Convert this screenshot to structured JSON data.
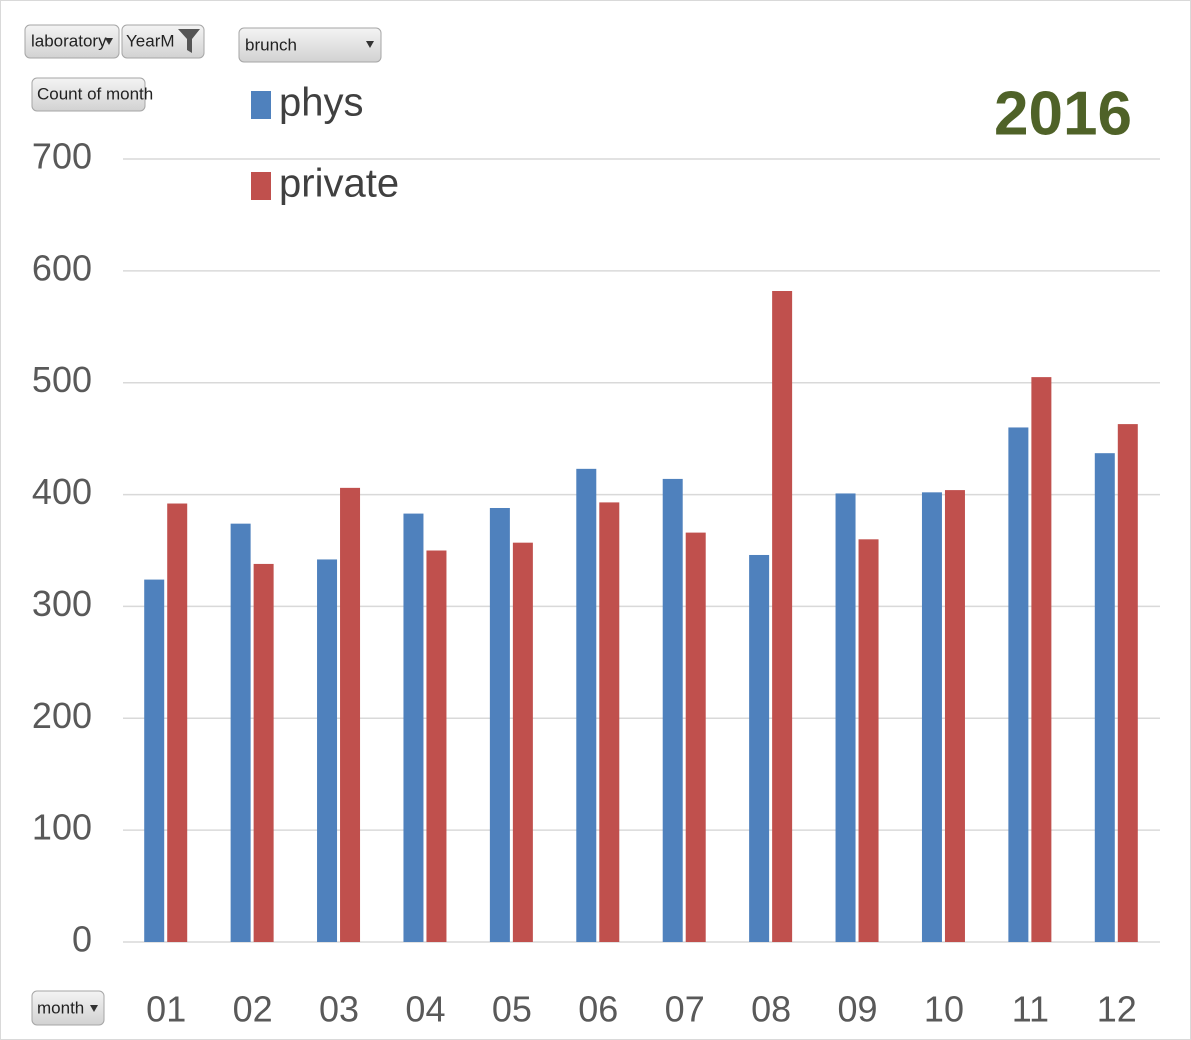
{
  "chart_data": {
    "type": "bar",
    "title": "2016",
    "filters": [
      "laboratory",
      "YearM",
      "brunch"
    ],
    "value_field": "Count of month",
    "axis_field": "month",
    "categories": [
      "01",
      "02",
      "03",
      "04",
      "05",
      "06",
      "07",
      "08",
      "09",
      "10",
      "11",
      "12"
    ],
    "series": [
      {
        "name": "phys",
        "color": "#4f81bd",
        "values": [
          324,
          374,
          342,
          383,
          388,
          423,
          414,
          346,
          401,
          402,
          460,
          437
        ]
      },
      {
        "name": "private",
        "color": "#c0504d",
        "values": [
          392,
          338,
          406,
          350,
          357,
          393,
          366,
          582,
          360,
          404,
          505,
          463
        ]
      }
    ],
    "ylim": [
      0,
      700
    ],
    "yticks": [
      0,
      100,
      200,
      300,
      400,
      500,
      600,
      700
    ],
    "grid": true,
    "legend": "top-left"
  }
}
